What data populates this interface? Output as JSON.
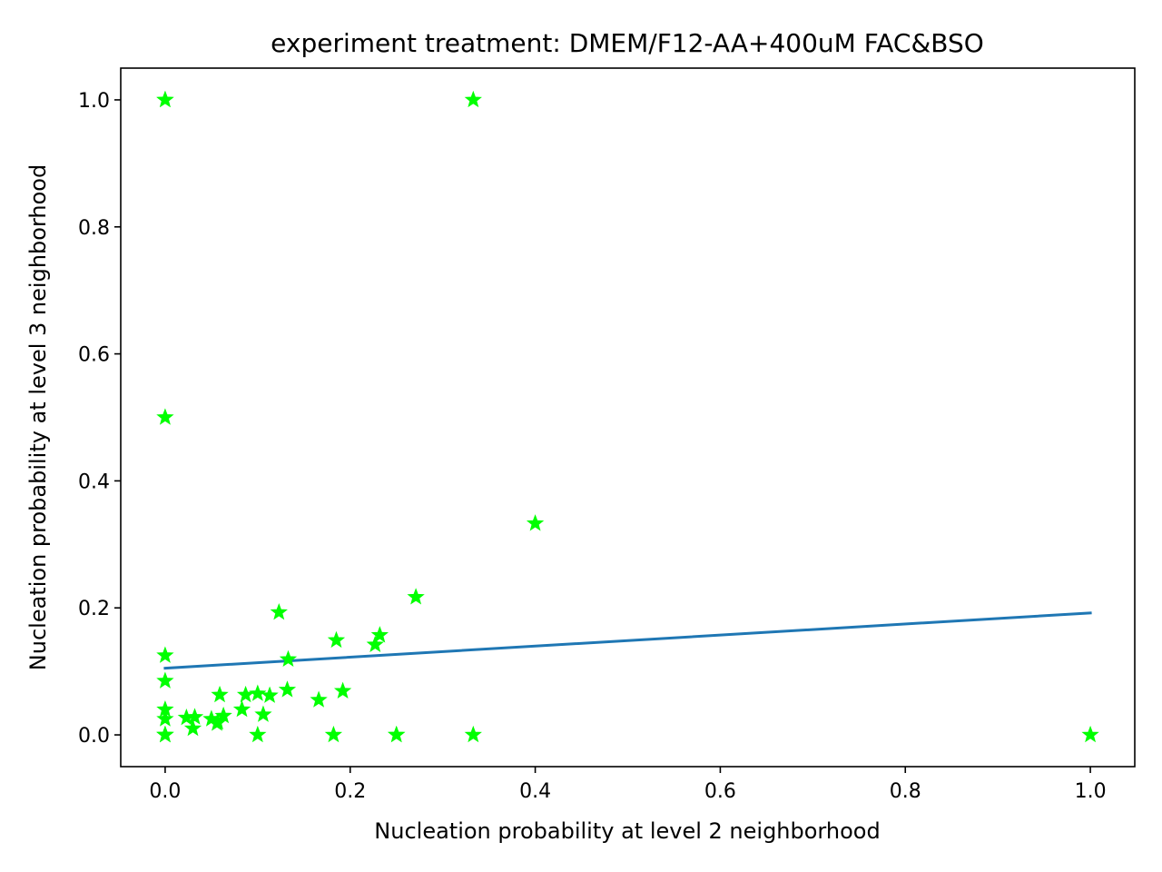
{
  "chart_data": {
    "type": "scatter",
    "title": "experiment treatment: DMEM/F12-AA+400uM FAC&BSO",
    "xlabel": "Nucleation probability at level 2 neighborhood",
    "ylabel": "Nucleation probability at level 3 neighborhood",
    "xlim": [
      -0.048,
      1.048
    ],
    "ylim": [
      -0.05,
      1.05
    ],
    "xticks": [
      0.0,
      0.2,
      0.4,
      0.6,
      0.8,
      1.0
    ],
    "yticks": [
      0.0,
      0.2,
      0.4,
      0.6,
      0.8,
      1.0
    ],
    "xtick_labels": [
      "0.0",
      "0.2",
      "0.4",
      "0.6",
      "0.8",
      "1.0"
    ],
    "ytick_labels": [
      "0.0",
      "0.2",
      "0.4",
      "0.6",
      "0.8",
      "1.0"
    ],
    "grid": false,
    "marker_color": "#00ff00",
    "line_color": "#1f77b4",
    "points": [
      [
        0.0,
        1.0
      ],
      [
        0.0,
        1.0
      ],
      [
        0.333,
        1.0
      ],
      [
        0.0,
        0.5
      ],
      [
        0.4,
        0.333
      ],
      [
        0.271,
        0.217
      ],
      [
        0.123,
        0.193
      ],
      [
        0.232,
        0.157
      ],
      [
        0.227,
        0.142
      ],
      [
        0.185,
        0.149
      ],
      [
        0.133,
        0.119
      ],
      [
        0.0,
        0.125
      ],
      [
        0.0,
        0.085
      ],
      [
        0.132,
        0.071
      ],
      [
        0.192,
        0.069
      ],
      [
        0.166,
        0.055
      ],
      [
        0.1,
        0.065
      ],
      [
        0.087,
        0.063
      ],
      [
        0.113,
        0.062
      ],
      [
        0.059,
        0.063
      ],
      [
        0.083,
        0.04
      ],
      [
        0.106,
        0.032
      ],
      [
        0.0,
        0.04
      ],
      [
        0.0,
        0.025
      ],
      [
        0.0,
        0.0
      ],
      [
        0.0,
        0.0
      ],
      [
        0.0,
        0.0
      ],
      [
        0.023,
        0.027
      ],
      [
        0.032,
        0.028
      ],
      [
        0.03,
        0.01
      ],
      [
        0.05,
        0.025
      ],
      [
        0.057,
        0.02
      ],
      [
        0.063,
        0.03
      ],
      [
        0.056,
        0.018
      ],
      [
        0.1,
        0.0
      ],
      [
        0.182,
        0.0
      ],
      [
        0.25,
        0.0
      ],
      [
        0.25,
        0.0
      ],
      [
        0.333,
        0.0
      ],
      [
        1.0,
        0.0
      ]
    ],
    "fit_line": {
      "x": [
        0.0,
        1.0
      ],
      "y": [
        0.105,
        0.192
      ]
    }
  }
}
